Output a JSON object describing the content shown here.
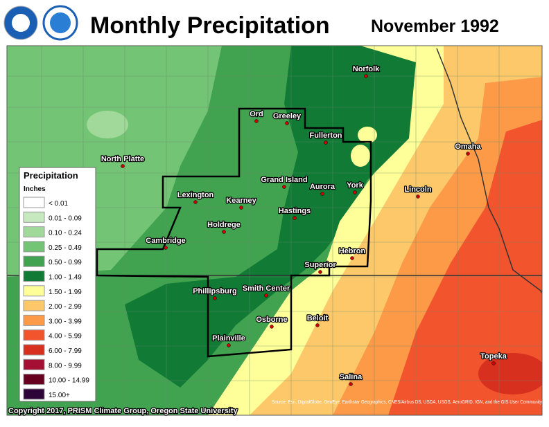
{
  "header": {
    "title": "Monthly Precipitation",
    "subtitle": "November 1992"
  },
  "legend": {
    "title": "Precipitation",
    "units": "Inches",
    "items": [
      {
        "label": "< 0.01",
        "color": "#ffffff"
      },
      {
        "label": "0.01 - 0.09",
        "color": "#c7e9c0"
      },
      {
        "label": "0.10 - 0.24",
        "color": "#a1d99b"
      },
      {
        "label": "0.25 - 0.49",
        "color": "#74c476"
      },
      {
        "label": "0.50 - 0.99",
        "color": "#41a350"
      },
      {
        "label": "1.00 - 1.49",
        "color": "#117a35"
      },
      {
        "label": "1.50 - 1.99",
        "color": "#ffff99"
      },
      {
        "label": "2.00 - 2.99",
        "color": "#fdc86a"
      },
      {
        "label": "3.00 - 3.99",
        "color": "#fd9a48"
      },
      {
        "label": "4.00 - 5.99",
        "color": "#f2542d"
      },
      {
        "label": "6.00 - 7.99",
        "color": "#d7301f"
      },
      {
        "label": "8.00 - 9.99",
        "color": "#a50f34"
      },
      {
        "label": "10.00 - 14.99",
        "color": "#67001f"
      },
      {
        "label": "15.00+",
        "color": "#2d0537"
      }
    ]
  },
  "cities": [
    "North Platte",
    "Ord",
    "Greeley",
    "Fullerton",
    "Norfolk",
    "Lexington",
    "Kearney",
    "Grand Island",
    "Aurora",
    "York",
    "Lincoln",
    "Omaha",
    "Hastings",
    "Holdrege",
    "Cambridge",
    "Hebron",
    "Superior",
    "Phillipsburg",
    "Smith Center",
    "Osborne",
    "Beloit",
    "Plainville",
    "Topeka",
    "Salina"
  ],
  "footer": {
    "copyright": "Copyright 2017, PRISM Climate Group, Oregon State University",
    "source": "Source: Esri, DigitalGlobe, GeoEye, Earthstar Geographics, CNES/Airbus DS, USDA, USGS, AeroGRID, IGN, and the GIS User Community"
  }
}
